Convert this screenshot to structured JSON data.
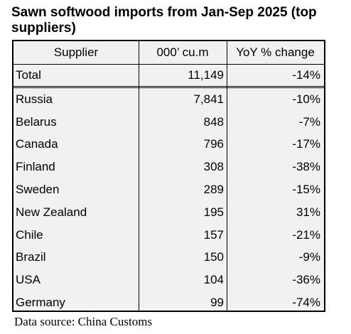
{
  "title": "Sawn softwood imports from Jan-Sep 2025 (top suppliers)",
  "table": {
    "headers": [
      "Supplier",
      "000’ cu.m",
      "YoY % change"
    ],
    "total": {
      "supplier": "Total",
      "volume": "11,149",
      "change": "-14%"
    },
    "rows": [
      {
        "supplier": "Russia",
        "volume": "7,841",
        "change": "-10%"
      },
      {
        "supplier": "Belarus",
        "volume": "848",
        "change": "-7%"
      },
      {
        "supplier": "Canada",
        "volume": "796",
        "change": "-17%"
      },
      {
        "supplier": "Finland",
        "volume": "308",
        "change": "-38%"
      },
      {
        "supplier": "Sweden",
        "volume": "289",
        "change": "-15%"
      },
      {
        "supplier": "New Zealand",
        "volume": "195",
        "change": "31%"
      },
      {
        "supplier": "Chile",
        "volume": "157",
        "change": "-21%"
      },
      {
        "supplier": "Brazil",
        "volume": "150",
        "change": "-9%"
      },
      {
        "supplier": "USA",
        "volume": "104",
        "change": "-36%"
      },
      {
        "supplier": "Germany",
        "volume": "99",
        "change": "-74%"
      }
    ]
  },
  "source": "Data source: China Customs"
}
